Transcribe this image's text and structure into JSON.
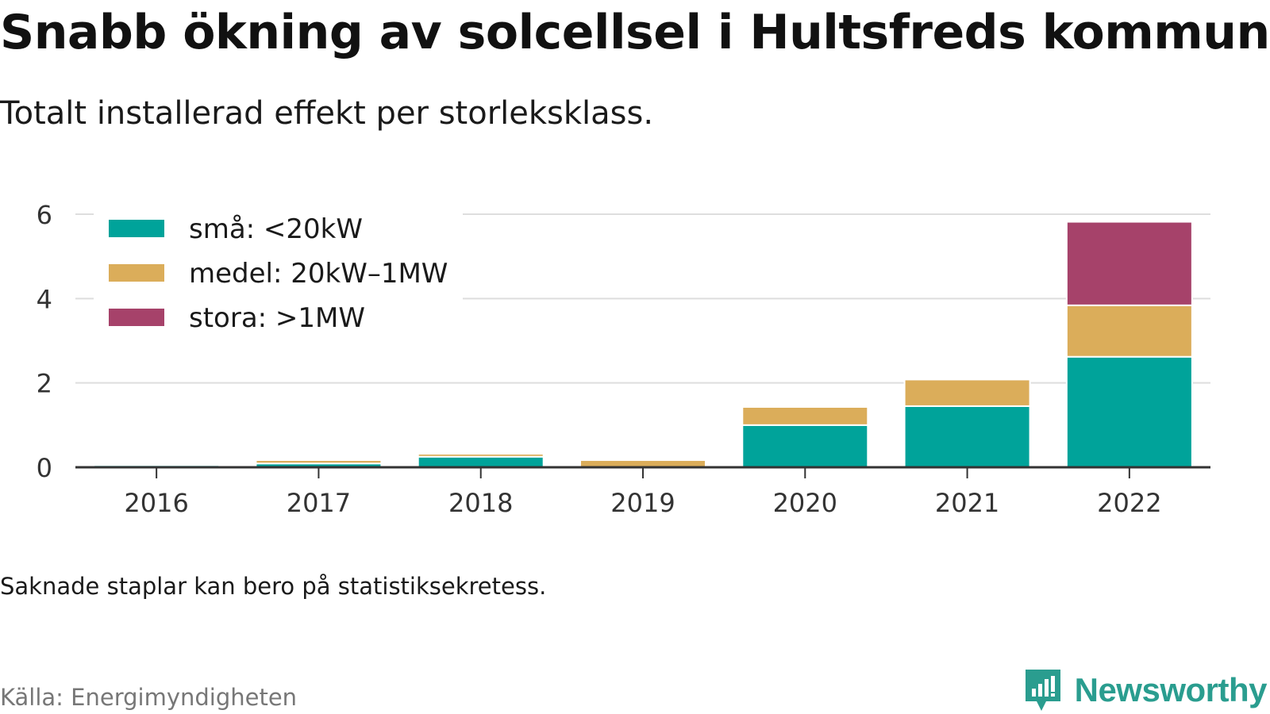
{
  "title": "Snabb ökning av solcellsel i Hultsfreds kommun",
  "subtitle": "Totalt installerad effekt per storleksklass.",
  "note": "Saknade staplar kan bero på statistiksekretess.",
  "source": "Källa: Energimyndigheten",
  "brand": {
    "name": "Newsworthy",
    "icon": "newsworthy-logo-icon",
    "color": "#2a9d8f"
  },
  "chart_data": {
    "type": "bar",
    "stacked": true,
    "categories": [
      "2016",
      "2017",
      "2018",
      "2019",
      "2020",
      "2021",
      "2022"
    ],
    "series": [
      {
        "name": "små: <20kW",
        "color": "#00a39a",
        "values": [
          0.05,
          0.09,
          0.25,
          0.0,
          1.0,
          1.45,
          2.62
        ]
      },
      {
        "name": "medel: 20kW–1MW",
        "color": "#dbad5a",
        "values": [
          0.0,
          0.08,
          0.07,
          0.17,
          0.43,
          0.63,
          1.22
        ]
      },
      {
        "name": "stora: >1MW",
        "color": "#a6426a",
        "values": [
          0.0,
          0.0,
          0.0,
          0.0,
          0.0,
          0.0,
          1.98
        ]
      }
    ],
    "y_ticks": [
      "0",
      "2",
      "4",
      "6"
    ],
    "ylim": [
      0,
      6
    ],
    "grid": true,
    "legend": "top-left",
    "xlabel": "",
    "ylabel": ""
  }
}
